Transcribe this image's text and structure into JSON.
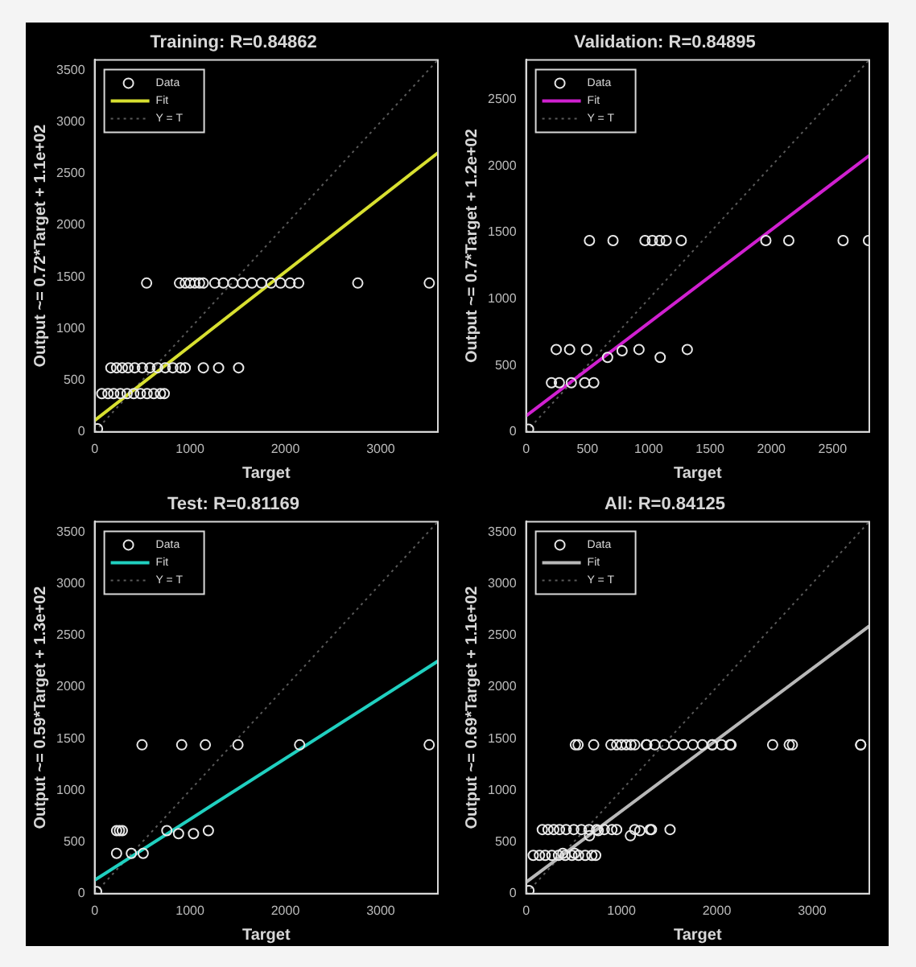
{
  "chart_data": [
    {
      "type": "scatter",
      "title": "Training: R=0.84862",
      "xlabel": "Target",
      "ylabel": "Output ~= 0.72*Target + 1.1e+02",
      "xlim": [
        0,
        3600
      ],
      "ylim": [
        0,
        3600
      ],
      "xticks": [
        0,
        1000,
        2000,
        3000
      ],
      "yticks": [
        0,
        500,
        1000,
        1500,
        2000,
        2500,
        3000,
        3500
      ],
      "legend": "top left",
      "series": [
        {
          "name": "Data",
          "marker": "circle",
          "color": "#e8e8e8",
          "x": [
            545,
            890,
            950,
            1000,
            1050,
            1100,
            1140,
            1260,
            1350,
            1450,
            1550,
            1650,
            1750,
            1850,
            1950,
            2050,
            2140,
            2760,
            3510,
            170,
            230,
            290,
            350,
            420,
            500,
            580,
            660,
            740,
            820,
            900,
            950,
            1140,
            1300,
            1510,
            75,
            140,
            200,
            270,
            340,
            410,
            480,
            550,
            620,
            690,
            730,
            30
          ],
          "values": [
            1440,
            1440,
            1440,
            1440,
            1440,
            1440,
            1440,
            1440,
            1440,
            1440,
            1440,
            1440,
            1440,
            1440,
            1440,
            1440,
            1440,
            1440,
            1440,
            620,
            620,
            620,
            620,
            620,
            620,
            620,
            620,
            620,
            620,
            620,
            620,
            620,
            620,
            620,
            370,
            370,
            370,
            370,
            370,
            370,
            370,
            370,
            370,
            370,
            370,
            30
          ]
        },
        {
          "name": "Fit",
          "type": "line",
          "marker": "none",
          "color": "#d8e030",
          "x": [
            0,
            3600
          ],
          "values": [
            110,
            2700
          ]
        },
        {
          "name": "Y = T",
          "type": "line",
          "marker": "none",
          "color": "#5a5a5a",
          "line_style": "dotted",
          "x": [
            0,
            3600
          ],
          "values": [
            0,
            3600
          ]
        }
      ]
    },
    {
      "type": "scatter",
      "title": "Validation: R=0.84895",
      "xlabel": "Target",
      "ylabel": "Output ~= 0.7*Target + 1.2e+02",
      "xlim": [
        0,
        2800
      ],
      "ylim": [
        0,
        2800
      ],
      "xticks": [
        0,
        500,
        1000,
        1500,
        2000,
        2500
      ],
      "yticks": [
        0,
        500,
        1000,
        1500,
        2000,
        2500
      ],
      "legend": "top left",
      "series": [
        {
          "name": "Data",
          "marker": "circle",
          "color": "#e8e8e8",
          "x": [
            517,
            709,
            970,
            1030,
            1090,
            1143,
            1266,
            1956,
            2143,
            2586,
            2793,
            246,
            355,
            493,
            665,
            783,
            921,
            1094,
            1315,
            207,
            271,
            369,
            478,
            552,
            20
          ],
          "values": [
            1440,
            1440,
            1440,
            1440,
            1440,
            1440,
            1440,
            1440,
            1440,
            1440,
            1440,
            620,
            620,
            620,
            560,
            610,
            620,
            560,
            620,
            370,
            370,
            370,
            370,
            370,
            20
          ]
        },
        {
          "name": "Fit",
          "type": "line",
          "marker": "none",
          "color": "#d020d0",
          "x": [
            0,
            2800
          ],
          "values": [
            120,
            2080
          ]
        },
        {
          "name": "Y = T",
          "type": "line",
          "marker": "none",
          "color": "#5a5a5a",
          "line_style": "dotted",
          "x": [
            0,
            2800
          ],
          "values": [
            0,
            2800
          ]
        }
      ]
    },
    {
      "type": "scatter",
      "title": "Test: R=0.81169",
      "xlabel": "Target",
      "ylabel": "Output ~= 0.59*Target + 1.3e+02",
      "xlim": [
        0,
        3600
      ],
      "ylim": [
        0,
        3600
      ],
      "xticks": [
        0,
        1000,
        2000,
        3000
      ],
      "yticks": [
        0,
        500,
        1000,
        1500,
        2000,
        2500,
        3000,
        3500
      ],
      "legend": "top left",
      "series": [
        {
          "name": "Data",
          "marker": "circle",
          "color": "#e8e8e8",
          "x": [
            497,
            913,
            1161,
            1503,
            2150,
            3509,
            230,
            260,
            290,
            757,
            880,
            1037,
            1193,
            230,
            385,
            509,
            20
          ],
          "values": [
            1440,
            1440,
            1440,
            1440,
            1440,
            1440,
            610,
            610,
            610,
            610,
            580,
            580,
            610,
            390,
            390,
            390,
            20
          ]
        },
        {
          "name": "Fit",
          "type": "line",
          "marker": "none",
          "color": "#20d0c0",
          "x": [
            0,
            3600
          ],
          "values": [
            130,
            2250
          ]
        },
        {
          "name": "Y = T",
          "type": "line",
          "marker": "none",
          "color": "#5a5a5a",
          "line_style": "dotted",
          "x": [
            0,
            3600
          ],
          "values": [
            0,
            3600
          ]
        }
      ]
    },
    {
      "type": "scatter",
      "title": "All: R=0.84125",
      "xlabel": "Target",
      "ylabel": "Output ~= 0.69*Target + 1.1e+02",
      "xlim": [
        0,
        3600
      ],
      "ylim": [
        0,
        3600
      ],
      "xticks": [
        0,
        1000,
        2000,
        3000
      ],
      "yticks": [
        0,
        500,
        1000,
        1500,
        2000,
        2500,
        3000,
        3500
      ],
      "legend": "top left",
      "series": [
        {
          "name": "Data",
          "marker": "circle",
          "color": "#e8e8e8",
          "x": [
            545,
            890,
            950,
            1000,
            1050,
            1100,
            1140,
            1260,
            1350,
            1450,
            1550,
            1650,
            1750,
            1850,
            1950,
            2050,
            2140,
            2760,
            3510,
            170,
            230,
            290,
            350,
            420,
            500,
            580,
            660,
            740,
            820,
            900,
            950,
            1140,
            1300,
            1510,
            75,
            140,
            200,
            270,
            340,
            410,
            480,
            550,
            620,
            690,
            730,
            30,
            517,
            709,
            1266,
            1956,
            2586,
            2793,
            665,
            1094,
            1315,
            2150,
            3509,
            757,
            1193,
            385,
            509
          ],
          "values": [
            1440,
            1440,
            1440,
            1440,
            1440,
            1440,
            1440,
            1440,
            1440,
            1440,
            1440,
            1440,
            1440,
            1440,
            1440,
            1440,
            1440,
            1440,
            1440,
            620,
            620,
            620,
            620,
            620,
            620,
            620,
            620,
            620,
            620,
            620,
            620,
            620,
            620,
            620,
            370,
            370,
            370,
            370,
            370,
            370,
            370,
            370,
            370,
            370,
            370,
            30,
            1440,
            1440,
            1440,
            1440,
            1440,
            1440,
            560,
            560,
            620,
            1440,
            1440,
            610,
            610,
            390,
            390
          ]
        },
        {
          "name": "Fit",
          "type": "line",
          "marker": "none",
          "color": "#b8b8b8",
          "x": [
            0,
            3600
          ],
          "values": [
            110,
            2590
          ]
        },
        {
          "name": "Y = T",
          "type": "line",
          "marker": "none",
          "color": "#5a5a5a",
          "line_style": "dotted",
          "x": [
            0,
            3600
          ],
          "values": [
            0,
            3600
          ]
        }
      ]
    }
  ]
}
